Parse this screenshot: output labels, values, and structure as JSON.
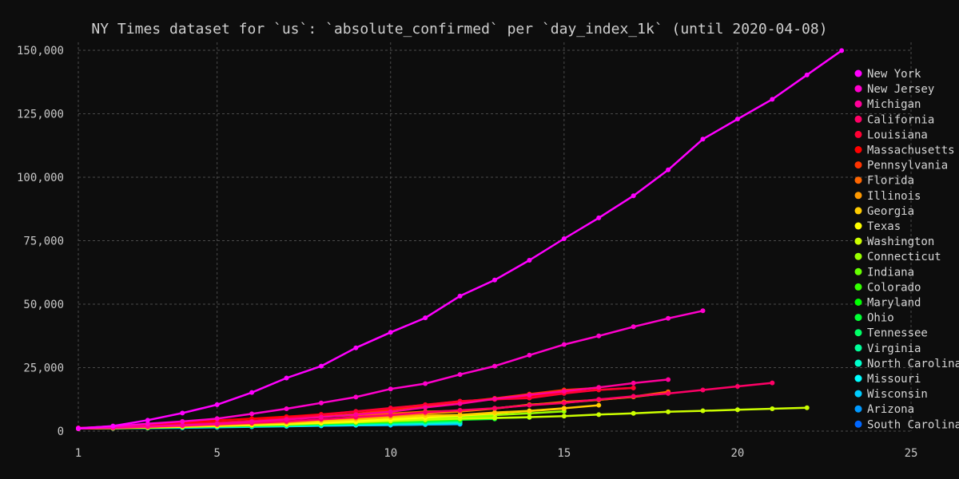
{
  "chart_data": {
    "type": "line",
    "title": "NY Times dataset for `us`: `absolute_confirmed` per `day_index_1k` (until 2020-04-08)",
    "xlabel": "",
    "ylabel": "",
    "xlim": [
      1,
      25
    ],
    "ylim": [
      0,
      150000
    ],
    "x_ticks": [
      1,
      5,
      10,
      15,
      20,
      25
    ],
    "x_tick_labels": [
      "1",
      "5",
      "10",
      "15",
      "20",
      "25"
    ],
    "y_ticks": [
      0,
      25000,
      50000,
      75000,
      100000,
      125000,
      150000
    ],
    "y_tick_labels": [
      "0",
      "25,000",
      "50,000",
      "75,000",
      "100,000",
      "125,000",
      "150,000"
    ],
    "grid": true,
    "legend_position": "right",
    "series": [
      {
        "name": "New York",
        "color": "#ff00ff",
        "x": [
          1,
          2,
          3,
          4,
          5,
          6,
          7,
          8,
          9,
          10,
          11,
          12,
          13,
          14,
          15,
          16,
          17,
          18,
          19,
          20,
          21,
          22,
          23
        ],
        "y": [
          1000,
          2000,
          4300,
          7100,
          10400,
          15200,
          20900,
          25600,
          32800,
          38900,
          44600,
          53200,
          59500,
          67300,
          75800,
          84000,
          92700,
          102900,
          115000,
          122900,
          130700,
          140300,
          149900
        ]
      },
      {
        "name": "New Jersey",
        "color": "#ff00cc",
        "x": [
          1,
          2,
          3,
          4,
          5,
          6,
          7,
          8,
          9,
          10,
          11,
          12,
          13,
          14,
          15,
          16,
          17,
          18,
          19
        ],
        "y": [
          1200,
          1900,
          2900,
          3800,
          4900,
          6800,
          8800,
          11100,
          13400,
          16600,
          18700,
          22300,
          25600,
          29900,
          34100,
          37500,
          41100,
          44400,
          47400
        ]
      },
      {
        "name": "Michigan",
        "color": "#ff0099",
        "x": [
          1,
          2,
          3,
          4,
          5,
          6,
          7,
          8,
          9,
          10,
          11,
          12,
          13,
          14,
          15,
          16,
          17,
          18
        ],
        "y": [
          1000,
          1300,
          1800,
          2300,
          2900,
          3700,
          4600,
          5500,
          6500,
          7600,
          9300,
          10800,
          12700,
          14200,
          15700,
          17200,
          18900,
          20300
        ]
      },
      {
        "name": "California",
        "color": "#ff0066",
        "x": [
          1,
          2,
          3,
          4,
          5,
          6,
          7,
          8,
          9,
          10,
          11,
          12,
          13,
          14,
          15,
          16,
          17,
          18,
          19,
          20,
          21
        ],
        "y": [
          1100,
          1400,
          1800,
          2200,
          2700,
          3200,
          3800,
          4600,
          5500,
          6300,
          7400,
          8200,
          9000,
          10200,
          11100,
          12500,
          13700,
          14800,
          16200,
          17600,
          19000
        ]
      },
      {
        "name": "Louisiana",
        "color": "#ff0033",
        "x": [
          1,
          2,
          3,
          4,
          5,
          6,
          7,
          8,
          9,
          10,
          11,
          12,
          13,
          14,
          15,
          16,
          17
        ],
        "y": [
          1200,
          1800,
          2300,
          2700,
          3300,
          4000,
          5200,
          6400,
          7800,
          9100,
          10300,
          11800,
          12500,
          13000,
          14800,
          16300,
          17000
        ]
      },
      {
        "name": "Massachusetts",
        "color": "#ff0000",
        "x": [
          1,
          2,
          3,
          4,
          5,
          6,
          7,
          8,
          9,
          10,
          11,
          12,
          13,
          14,
          15,
          16,
          17
        ],
        "y": [
          1200,
          1800,
          2400,
          3200,
          4200,
          4900,
          5700,
          6600,
          7700,
          8900,
          10400,
          11700,
          12500,
          13800,
          15200,
          16200,
          17000
        ]
      },
      {
        "name": "Pennsylvania",
        "color": "#ff3300",
        "x": [
          1,
          2,
          3,
          4,
          5,
          6,
          7,
          8,
          9,
          10,
          11,
          12,
          13,
          14,
          15,
          16
        ],
        "y": [
          1100,
          1700,
          2200,
          2800,
          3400,
          4100,
          4900,
          5800,
          6800,
          8400,
          10000,
          11500,
          12900,
          14600,
          16200,
          17000
        ]
      },
      {
        "name": "Florida",
        "color": "#ff6600",
        "x": [
          1,
          2,
          3,
          4,
          5,
          6,
          7,
          8,
          9,
          10,
          11,
          12,
          13,
          14,
          15,
          16,
          17,
          18
        ],
        "y": [
          1000,
          1300,
          1700,
          2400,
          3200,
          4000,
          4900,
          5700,
          6300,
          6900,
          7700,
          8000,
          9000,
          10300,
          11500,
          12300,
          13600,
          15500
        ]
      },
      {
        "name": "Illinois",
        "color": "#ff9900",
        "x": [
          1,
          2,
          3,
          4,
          5,
          6,
          7,
          8,
          9,
          10,
          11,
          12,
          13,
          14,
          15,
          16,
          17,
          18
        ],
        "y": [
          1000,
          1300,
          1600,
          2000,
          2500,
          3000,
          3500,
          4600,
          5100,
          5900,
          6900,
          7700,
          8900,
          10400,
          11200,
          12300,
          13500,
          15000
        ]
      },
      {
        "name": "Georgia",
        "color": "#ffcc00",
        "x": [
          1,
          2,
          3,
          4,
          5,
          6,
          7,
          8,
          9,
          10,
          11,
          12,
          13,
          14,
          15,
          16
        ],
        "y": [
          1000,
          1200,
          1500,
          2000,
          2300,
          2800,
          3300,
          3900,
          4600,
          5400,
          6100,
          6400,
          7300,
          8000,
          9000,
          10200
        ]
      },
      {
        "name": "Texas",
        "color": "#ffff00",
        "x": [
          1,
          2,
          3,
          4,
          5,
          6,
          7,
          8,
          9,
          10,
          11,
          12,
          13,
          14,
          15
        ],
        "y": [
          1000,
          1200,
          1400,
          1700,
          2000,
          2400,
          3000,
          3300,
          3900,
          4600,
          5300,
          6100,
          7000,
          7900,
          8900
        ]
      },
      {
        "name": "Washington",
        "color": "#ccff00",
        "x": [
          1,
          2,
          3,
          4,
          5,
          6,
          7,
          8,
          9,
          10,
          11,
          12,
          13,
          14,
          15,
          16,
          17,
          18,
          19,
          20,
          21,
          22
        ],
        "y": [
          1100,
          1300,
          1500,
          1800,
          2100,
          2400,
          2600,
          3100,
          3500,
          4000,
          4500,
          4900,
          5200,
          5500,
          5900,
          6500,
          7000,
          7600,
          8000,
          8400,
          8800,
          9200
        ]
      },
      {
        "name": "Connecticut",
        "color": "#99ff00",
        "x": [
          1,
          2,
          3,
          4,
          5,
          6,
          7,
          8,
          9,
          10,
          11,
          12,
          13,
          14,
          15
        ],
        "y": [
          1000,
          1300,
          1500,
          1800,
          2100,
          2600,
          3100,
          3600,
          4100,
          4900,
          5300,
          5700,
          6300,
          7000,
          7800
        ]
      },
      {
        "name": "Indiana",
        "color": "#66ff00",
        "x": [
          1,
          2,
          3,
          4,
          5,
          6,
          7,
          8,
          9,
          10,
          11,
          12,
          13
        ],
        "y": [
          1000,
          1200,
          1500,
          1800,
          2100,
          2600,
          3000,
          3400,
          3900,
          4400,
          4900,
          5500,
          5900
        ]
      },
      {
        "name": "Colorado",
        "color": "#33ff00",
        "x": [
          1,
          2,
          3,
          4,
          5,
          6,
          7,
          8,
          9,
          10,
          11,
          12,
          13,
          14
        ],
        "y": [
          1000,
          1100,
          1400,
          1700,
          2000,
          2300,
          2600,
          2900,
          3300,
          3700,
          4200,
          4600,
          5200,
          5400
        ]
      },
      {
        "name": "Maryland",
        "color": "#00ff00",
        "x": [
          1,
          2,
          3,
          4,
          5,
          6,
          7,
          8,
          9,
          10,
          11,
          12,
          13
        ],
        "y": [
          1000,
          1200,
          1400,
          1700,
          2000,
          2300,
          2700,
          3100,
          3600,
          4000,
          4400,
          4900,
          5500
        ]
      },
      {
        "name": "Ohio",
        "color": "#00ff33",
        "x": [
          1,
          2,
          3,
          4,
          5,
          6,
          7,
          8,
          9,
          10,
          11,
          12,
          13
        ],
        "y": [
          1000,
          1100,
          1400,
          1700,
          2000,
          2200,
          2500,
          2900,
          3300,
          3700,
          4100,
          4500,
          4800
        ]
      },
      {
        "name": "Tennessee",
        "color": "#00ff66",
        "x": [
          1,
          2,
          3,
          4,
          5,
          6,
          7,
          8,
          9,
          10,
          11,
          12
        ],
        "y": [
          1000,
          1200,
          1300,
          1500,
          1800,
          2000,
          2300,
          2700,
          3000,
          3300,
          3600,
          4000
        ]
      },
      {
        "name": "Virginia",
        "color": "#00ff99",
        "x": [
          1,
          2,
          3,
          4,
          5,
          6,
          7,
          8,
          9,
          10,
          11,
          12
        ],
        "y": [
          1000,
          1200,
          1500,
          1700,
          2000,
          2400,
          2700,
          2900,
          3300,
          3600,
          3900,
          4200
        ]
      },
      {
        "name": "North Carolina",
        "color": "#00ffcc",
        "x": [
          1,
          2,
          3,
          4,
          5,
          6,
          7,
          8,
          9,
          10,
          11,
          12
        ],
        "y": [
          1000,
          1200,
          1300,
          1500,
          1700,
          1900,
          2100,
          2400,
          2600,
          2900,
          3100,
          3400
        ]
      },
      {
        "name": "Missouri",
        "color": "#00ffff",
        "x": [
          1,
          2,
          3,
          4,
          5,
          6,
          7,
          8,
          9,
          10,
          11,
          12
        ],
        "y": [
          1000,
          1100,
          1300,
          1600,
          1800,
          2100,
          2300,
          2400,
          2700,
          3000,
          3200,
          3500
        ]
      },
      {
        "name": "Wisconsin",
        "color": "#00ccff",
        "x": [
          1,
          2,
          3,
          4,
          5,
          6,
          7,
          8,
          9,
          10,
          11,
          12
        ],
        "y": [
          1000,
          1100,
          1200,
          1300,
          1500,
          1700,
          1900,
          2100,
          2300,
          2400,
          2600,
          2800
        ]
      },
      {
        "name": "Arizona",
        "color": "#0099ff",
        "x": [
          1,
          2,
          3,
          4,
          5,
          6,
          7,
          8,
          9,
          10,
          11,
          12
        ],
        "y": [
          1000,
          1200,
          1400,
          1600,
          1700,
          1900,
          2000,
          2200,
          2300,
          2400,
          2600,
          2700
        ]
      },
      {
        "name": "South Carolina",
        "color": "#0066ff",
        "x": [
          1,
          2,
          3,
          4,
          5,
          6,
          7,
          8,
          9,
          10,
          11
        ],
        "y": [
          1000,
          1100,
          1300,
          1500,
          1700,
          1900,
          2000,
          2100,
          2300,
          2400,
          2600
        ]
      }
    ]
  }
}
